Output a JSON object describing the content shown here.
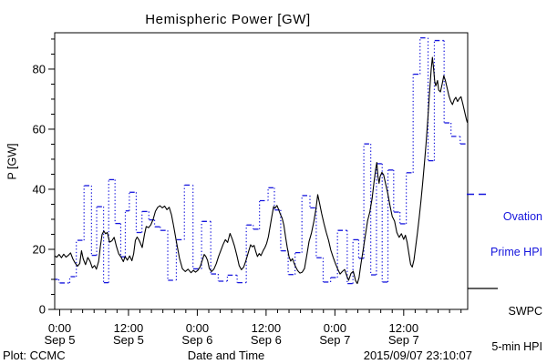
{
  "colors": {
    "ovation_blue": "#1515dd",
    "swpc_black": "#000000",
    "background": "#ffffff"
  },
  "legend": {
    "ovation_line1": "Ovation",
    "ovation_line2": "Prime HPI",
    "swpc_line1": "SWPC",
    "swpc_line2": "5-min HPI"
  },
  "footer": {
    "plot_source": "Plot: CCMC",
    "timestamp": "2015/09/07 23:10:07"
  },
  "chart_data": {
    "type": "line",
    "title": "Hemispheric Power [GW]",
    "xlabel": "Date and Time",
    "ylabel": "P [GW]",
    "ylim": [
      0,
      92.1
    ],
    "x_unit_hours_since": "2015-09-05 00:00",
    "xlim_hours": [
      -0.87,
      71.16
    ],
    "grid": false,
    "y_major_ticks": [
      {
        "v": 0,
        "label": "0"
      },
      {
        "v": 20,
        "label": "20"
      },
      {
        "v": 40,
        "label": "40"
      },
      {
        "v": 60,
        "label": "60"
      },
      {
        "v": 80,
        "label": "80"
      }
    ],
    "y_minor_step": 5,
    "x_major_ticks": [
      {
        "t": 0,
        "line1": "0:00",
        "line2": "Sep 5"
      },
      {
        "t": 12,
        "line1": "12:00",
        "line2": "Sep 5"
      },
      {
        "t": 24,
        "line1": "0:00",
        "line2": "Sep 6"
      },
      {
        "t": 36,
        "line1": "12:00",
        "line2": "Sep 6"
      },
      {
        "t": 48,
        "line1": "0:00",
        "line2": "Sep 7"
      },
      {
        "t": 60,
        "line1": "12:00",
        "line2": "Sep 7"
      }
    ],
    "x_minor_step_hours": 2,
    "series": [
      {
        "name": "SWPC 5-min HPI",
        "color": "#000000",
        "style": "solid",
        "points": [
          [
            -0.87,
            17.8
          ],
          [
            -0.5,
            17.4
          ],
          [
            -0.1,
            18.3
          ],
          [
            0.3,
            17.2
          ],
          [
            0.7,
            18.4
          ],
          [
            1.1,
            17.4
          ],
          [
            1.5,
            18.0
          ],
          [
            1.9,
            18.8
          ],
          [
            2.3,
            16.8
          ],
          [
            2.7,
            15.4
          ],
          [
            3.1,
            14.4
          ],
          [
            3.5,
            15.3
          ],
          [
            3.8,
            19.5
          ],
          [
            4.1,
            16.8
          ],
          [
            4.5,
            14.9
          ],
          [
            4.9,
            17.3
          ],
          [
            5.3,
            16.0
          ],
          [
            5.7,
            13.8
          ],
          [
            6.1,
            14.6
          ],
          [
            6.4,
            13.4
          ],
          [
            6.8,
            16.0
          ],
          [
            7.1,
            21.0
          ],
          [
            7.4,
            25.0
          ],
          [
            7.7,
            26.1
          ],
          [
            8.0,
            25.2
          ],
          [
            8.3,
            25.6
          ],
          [
            8.7,
            22.4
          ],
          [
            9.1,
            22.8
          ],
          [
            9.5,
            24.0
          ],
          [
            9.9,
            21.0
          ],
          [
            10.3,
            18.5
          ],
          [
            10.7,
            17.4
          ],
          [
            11.1,
            15.9
          ],
          [
            11.4,
            17.6
          ],
          [
            11.8,
            16.4
          ],
          [
            12.2,
            17.8
          ],
          [
            12.6,
            16.2
          ],
          [
            12.9,
            18.5
          ],
          [
            13.2,
            23.0
          ],
          [
            13.5,
            24.1
          ],
          [
            13.8,
            23.2
          ],
          [
            14.1,
            22.0
          ],
          [
            14.4,
            20.6
          ],
          [
            14.8,
            25.0
          ],
          [
            15.1,
            27.6
          ],
          [
            15.5,
            27.2
          ],
          [
            15.9,
            28.2
          ],
          [
            16.3,
            30.0
          ],
          [
            16.7,
            32.7
          ],
          [
            17.1,
            34.0
          ],
          [
            17.5,
            34.5
          ],
          [
            17.9,
            33.8
          ],
          [
            18.3,
            34.4
          ],
          [
            18.7,
            33.2
          ],
          [
            19.1,
            34.0
          ],
          [
            19.5,
            31.5
          ],
          [
            19.9,
            27.5
          ],
          [
            20.4,
            22.0
          ],
          [
            20.9,
            17.0
          ],
          [
            21.4,
            13.5
          ],
          [
            21.9,
            12.6
          ],
          [
            22.4,
            13.4
          ],
          [
            22.9,
            12.2
          ],
          [
            23.3,
            13.0
          ],
          [
            23.7,
            12.4
          ],
          [
            24.1,
            13.0
          ],
          [
            24.5,
            14.2
          ],
          [
            24.9,
            16.5
          ],
          [
            25.2,
            18.3
          ],
          [
            25.5,
            17.6
          ],
          [
            25.8,
            16.3
          ],
          [
            26.1,
            13.6
          ],
          [
            26.5,
            12.6
          ],
          [
            26.9,
            13.4
          ],
          [
            27.3,
            15.2
          ],
          [
            27.7,
            17.6
          ],
          [
            28.1,
            19.6
          ],
          [
            28.5,
            21.6
          ],
          [
            28.9,
            23.2
          ],
          [
            29.3,
            22.3
          ],
          [
            29.7,
            25.3
          ],
          [
            30.1,
            23.4
          ],
          [
            30.5,
            21.0
          ],
          [
            30.9,
            18.0
          ],
          [
            31.3,
            14.6
          ],
          [
            31.7,
            13.2
          ],
          [
            32.1,
            14.1
          ],
          [
            32.5,
            16.4
          ],
          [
            32.9,
            19.0
          ],
          [
            33.3,
            21.5
          ],
          [
            33.6,
            20.8
          ],
          [
            33.9,
            21.3
          ],
          [
            34.2,
            19.2
          ],
          [
            34.5,
            17.6
          ],
          [
            34.8,
            18.6
          ],
          [
            35.1,
            17.9
          ],
          [
            35.5,
            19.6
          ],
          [
            35.8,
            20.6
          ],
          [
            36.1,
            22.0
          ],
          [
            36.4,
            24.2
          ],
          [
            36.7,
            27.6
          ],
          [
            37.0,
            31.0
          ],
          [
            37.3,
            34.2
          ],
          [
            37.6,
            33.8
          ],
          [
            37.9,
            34.6
          ],
          [
            38.2,
            33.2
          ],
          [
            38.5,
            31.6
          ],
          [
            38.8,
            30.4
          ],
          [
            39.1,
            28.0
          ],
          [
            39.4,
            24.0
          ],
          [
            39.7,
            20.6
          ],
          [
            40.0,
            17.6
          ],
          [
            40.3,
            16.1
          ],
          [
            40.6,
            16.9
          ],
          [
            40.9,
            15.3
          ],
          [
            41.2,
            14.0
          ],
          [
            41.5,
            12.9
          ],
          [
            41.9,
            12.1
          ],
          [
            42.3,
            12.4
          ],
          [
            42.7,
            13.6
          ],
          [
            43.1,
            18.0
          ],
          [
            43.5,
            22.6
          ],
          [
            43.9,
            25.4
          ],
          [
            44.3,
            29.0
          ],
          [
            44.7,
            33.5
          ],
          [
            45.0,
            38.2
          ],
          [
            45.3,
            35.5
          ],
          [
            45.7,
            31.8
          ],
          [
            46.1,
            28.5
          ],
          [
            46.5,
            25.6
          ],
          [
            46.9,
            23.0
          ],
          [
            47.3,
            19.7
          ],
          [
            47.7,
            17.3
          ],
          [
            48.1,
            15.2
          ],
          [
            48.5,
            13.4
          ],
          [
            48.9,
            11.8
          ],
          [
            49.3,
            12.6
          ],
          [
            49.7,
            13.3
          ],
          [
            50.1,
            11.0
          ],
          [
            50.4,
            9.7
          ],
          [
            50.8,
            12.0
          ],
          [
            51.2,
            12.7
          ],
          [
            51.6,
            9.6
          ],
          [
            51.9,
            8.6
          ],
          [
            52.2,
            10.5
          ],
          [
            52.5,
            14.5
          ],
          [
            52.9,
            19.5
          ],
          [
            53.3,
            24.5
          ],
          [
            53.7,
            29.5
          ],
          [
            54.1,
            32.5
          ],
          [
            54.5,
            37.0
          ],
          [
            54.8,
            42.0
          ],
          [
            55.1,
            46.5
          ],
          [
            55.3,
            48.9
          ],
          [
            55.5,
            44.5
          ],
          [
            55.7,
            42.0
          ],
          [
            55.9,
            44.3
          ],
          [
            56.2,
            45.6
          ],
          [
            56.5,
            44.8
          ],
          [
            56.8,
            42.2
          ],
          [
            57.2,
            38.8
          ],
          [
            57.6,
            34.7
          ],
          [
            58.0,
            31.0
          ],
          [
            58.4,
            29.4
          ],
          [
            58.8,
            25.6
          ],
          [
            59.2,
            24.0
          ],
          [
            59.6,
            25.2
          ],
          [
            60.0,
            23.3
          ],
          [
            60.3,
            24.7
          ],
          [
            60.6,
            22.3
          ],
          [
            60.9,
            18.6
          ],
          [
            61.2,
            15.0
          ],
          [
            61.5,
            14.1
          ],
          [
            61.8,
            16.5
          ],
          [
            62.1,
            21.0
          ],
          [
            62.4,
            25.5
          ],
          [
            62.7,
            30.5
          ],
          [
            63.0,
            36.0
          ],
          [
            63.3,
            42.0
          ],
          [
            63.6,
            48.5
          ],
          [
            63.9,
            55.0
          ],
          [
            64.2,
            63.0
          ],
          [
            64.5,
            72.0
          ],
          [
            64.8,
            80.0
          ],
          [
            65.0,
            83.9
          ],
          [
            65.2,
            80.5
          ],
          [
            65.4,
            76.0
          ],
          [
            65.6,
            74.4
          ],
          [
            65.9,
            76.2
          ],
          [
            66.1,
            73.0
          ],
          [
            66.4,
            72.4
          ],
          [
            66.7,
            75.0
          ],
          [
            67.0,
            77.8
          ],
          [
            67.3,
            76.0
          ],
          [
            67.6,
            73.5
          ],
          [
            67.9,
            71.0
          ],
          [
            68.2,
            69.3
          ],
          [
            68.5,
            68.2
          ],
          [
            68.8,
            69.8
          ],
          [
            69.1,
            70.6
          ],
          [
            69.4,
            69.2
          ],
          [
            69.7,
            70.2
          ],
          [
            70.0,
            70.8
          ],
          [
            70.3,
            68.5
          ],
          [
            70.6,
            66.0
          ],
          [
            70.9,
            63.5
          ],
          [
            71.1,
            62.2
          ]
        ]
      },
      {
        "name": "Ovation Prime HPI",
        "color": "#1515dd",
        "style": "dashed-steps",
        "steps": [
          [
            -1.2,
            -0.3,
            10.0
          ],
          [
            0.0,
            1.6,
            8.8
          ],
          [
            1.9,
            2.7,
            10.9
          ],
          [
            3.1,
            4.2,
            23.0
          ],
          [
            4.3,
            5.5,
            41.2
          ],
          [
            5.6,
            6.4,
            18.0
          ],
          [
            6.5,
            7.6,
            34.2
          ],
          [
            7.7,
            8.5,
            8.9
          ],
          [
            8.6,
            9.6,
            43.2
          ],
          [
            9.7,
            10.6,
            28.6
          ],
          [
            10.7,
            11.4,
            17.5
          ],
          [
            11.5,
            12.1,
            32.8
          ],
          [
            12.2,
            13.3,
            39.0
          ],
          [
            13.4,
            14.3,
            25.6
          ],
          [
            14.4,
            15.5,
            32.6
          ],
          [
            15.6,
            16.5,
            29.8
          ],
          [
            16.6,
            17.5,
            27.5
          ],
          [
            17.6,
            18.8,
            26.3
          ],
          [
            18.9,
            20.3,
            9.7
          ],
          [
            20.4,
            21.7,
            23.2
          ],
          [
            21.8,
            23.2,
            41.4
          ],
          [
            23.3,
            24.7,
            13.5
          ],
          [
            24.8,
            26.3,
            29.3
          ],
          [
            26.4,
            27.6,
            11.8
          ],
          [
            27.7,
            29.2,
            9.4
          ],
          [
            29.3,
            30.9,
            11.4
          ],
          [
            31.0,
            32.5,
            8.9
          ],
          [
            32.6,
            33.7,
            28.1
          ],
          [
            33.8,
            34.8,
            26.7
          ],
          [
            34.9,
            36.3,
            36.2
          ],
          [
            36.4,
            37.4,
            40.5
          ],
          [
            37.5,
            38.5,
            33.1
          ],
          [
            38.6,
            39.8,
            19.5
          ],
          [
            39.9,
            41.0,
            11.6
          ],
          [
            41.1,
            42.2,
            18.9
          ],
          [
            42.3,
            43.6,
            37.9
          ],
          [
            43.7,
            44.7,
            33.8
          ],
          [
            44.8,
            45.9,
            17.2
          ],
          [
            46.0,
            47.2,
            9.1
          ],
          [
            47.3,
            48.4,
            10.6
          ],
          [
            48.5,
            50.1,
            26.3
          ],
          [
            50.2,
            51.1,
            8.6
          ],
          [
            51.2,
            52.1,
            23.2
          ],
          [
            52.2,
            53.0,
            17.0
          ],
          [
            53.1,
            54.2,
            55.1
          ],
          [
            54.3,
            55.2,
            11.5
          ],
          [
            55.3,
            56.2,
            48.5
          ],
          [
            56.3,
            57.2,
            9.1
          ],
          [
            57.3,
            58.2,
            46.4
          ],
          [
            58.3,
            59.3,
            32.4
          ],
          [
            59.4,
            60.4,
            28.5
          ],
          [
            60.5,
            61.6,
            45.5
          ],
          [
            61.7,
            62.8,
            78.3
          ],
          [
            62.9,
            64.2,
            90.4
          ],
          [
            64.3,
            65.3,
            49.5
          ],
          [
            65.4,
            67.0,
            89.5
          ],
          [
            67.1,
            68.2,
            62.1
          ],
          [
            68.3,
            69.8,
            57.6
          ],
          [
            69.9,
            71.1,
            55.1
          ]
        ]
      }
    ]
  }
}
